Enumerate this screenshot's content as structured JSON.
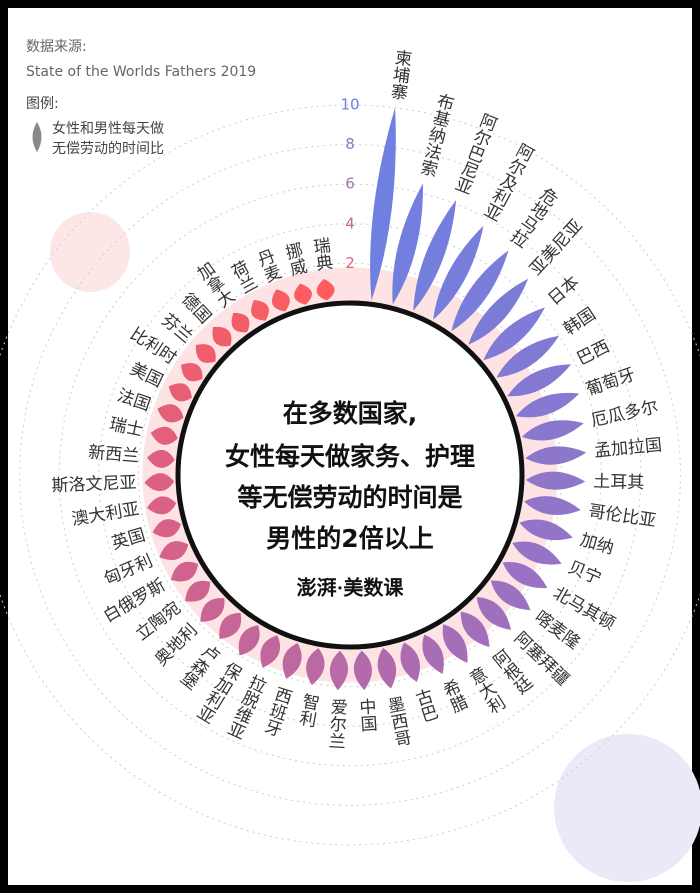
{
  "chart_data": {
    "type": "petal",
    "source_label": "数据来源:",
    "source": "State of the Worlds Fathers 2019",
    "legend_label": "图例:",
    "legend_text": [
      "女性和男性每天做",
      "无偿劳动的时间比"
    ],
    "center_text": [
      "在多数国家,",
      "女性每天做家务、护理",
      "等无偿劳动的时间是",
      "男性的2倍以上"
    ],
    "brand": "澎湃·美数课",
    "categories": [
      "柬埔寨",
      "布基纳法索",
      "阿尔巴尼亚",
      "阿尔及利亚",
      "危地马拉",
      "亚美尼亚",
      "日本",
      "韩国",
      "巴西",
      "葡萄牙",
      "厄瓜多尔",
      "孟加拉国",
      "土耳其",
      "哥伦比亚",
      "加纳",
      "贝宁",
      "北马其顿",
      "喀麦隆",
      "阿塞拜疆",
      "阿根廷",
      "意大利",
      "希腊",
      "古巴",
      "墨西哥",
      "中国",
      "爱尔兰",
      "智利",
      "西班牙",
      "拉脱维亚",
      "保加利亚",
      "卢森堡",
      "奥地利",
      "立陶宛",
      "白俄罗斯",
      "匈牙利",
      "英国",
      "澳大利亚",
      "斯洛文尼亚",
      "新西兰",
      "瑞士",
      "法国",
      "美国",
      "比利时",
      "芬兰",
      "德国",
      "加拿大",
      "荷兰",
      "丹麦",
      "挪威",
      "瑞典"
    ],
    "values": [
      10,
      6.5,
      6.2,
      5.6,
      5.2,
      4.7,
      4.3,
      4.0,
      3.8,
      3.6,
      3.4,
      3.3,
      3.2,
      3.1,
      3.0,
      2.9,
      2.8,
      2.7,
      2.6,
      2.5,
      2.5,
      2.4,
      2.3,
      2.3,
      2.2,
      2.2,
      2.1,
      2.1,
      2.0,
      2.0,
      1.9,
      1.9,
      1.8,
      1.8,
      1.8,
      1.7,
      1.7,
      1.7,
      1.6,
      1.6,
      1.6,
      1.5,
      1.5,
      1.5,
      1.5,
      1.4,
      1.4,
      1.4,
      1.3,
      1.3
    ],
    "rlim": [
      0,
      10
    ],
    "rticks": [
      2,
      4,
      6,
      8,
      10
    ],
    "color_scale": [
      "#6f80e0",
      "#9a72c4",
      "#d0628e",
      "#ff5c5c"
    ],
    "legend_color": "#8a8a8a"
  }
}
